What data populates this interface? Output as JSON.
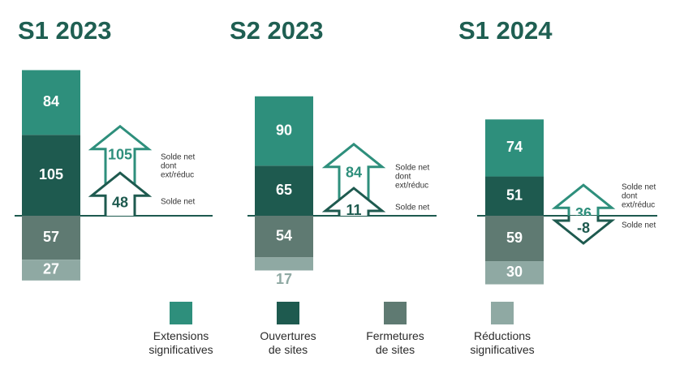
{
  "chart_data": {
    "type": "bar",
    "subtype": "stacked-diverging",
    "categories": [
      "S1 2023",
      "S2 2023",
      "S1 2024"
    ],
    "series": [
      {
        "name": "Extensions\nsignificatives",
        "color": "#2e8f7c",
        "direction": "up",
        "values": [
          84,
          90,
          74
        ]
      },
      {
        "name": "Ouvertures\nde sites",
        "color": "#1e5a4f",
        "direction": "up",
        "values": [
          105,
          65,
          51
        ]
      },
      {
        "name": "Fermetures\nde sites",
        "color": "#5f7a72",
        "direction": "down",
        "values": [
          57,
          54,
          59
        ]
      },
      {
        "name": "Réductions\nsignificatives",
        "color": "#8fa9a3",
        "direction": "down",
        "values": [
          27,
          17,
          30
        ]
      }
    ],
    "solde_net_ext_reduc": {
      "label": "Solde net\ndont\next/réduc",
      "values": [
        105,
        84,
        36
      ]
    },
    "solde_net": {
      "label": "Solde net",
      "values": [
        48,
        11,
        -8
      ]
    },
    "legend_position": "bottom",
    "grid": false
  }
}
